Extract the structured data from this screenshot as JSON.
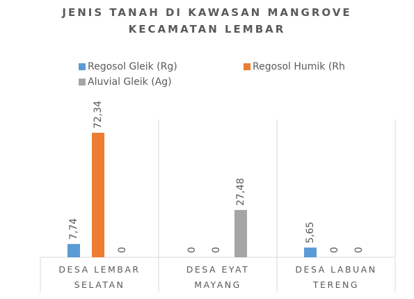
{
  "chart_data": {
    "type": "bar",
    "title": "JENIS TANAH DI KAWASAN MANGROVE KECAMATAN LEMBAR",
    "categories": [
      "DESA LEMBAR SELATAN",
      "DESA EYAT MAYANG",
      "DESA LABUAN TERENG"
    ],
    "series": [
      {
        "name": "Regosol Gleik (Rg)",
        "color": "#5b9bd5",
        "values": [
          7.74,
          0,
          5.65
        ],
        "value_labels": [
          "7,74",
          "0",
          "5,65"
        ]
      },
      {
        "name": "Regosol Humik (Rh",
        "color": "#ed7d31",
        "values": [
          72.34,
          0,
          0
        ],
        "value_labels": [
          "72,34",
          "0",
          "0"
        ]
      },
      {
        "name": "Aluvial Gleik (Ag)",
        "color": "#a5a5a5",
        "values": [
          0,
          27.48,
          0
        ],
        "value_labels": [
          "0",
          "27,48",
          "0"
        ]
      }
    ],
    "ylim": [
      0,
      80
    ]
  }
}
